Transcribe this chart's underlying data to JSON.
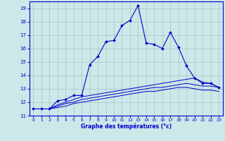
{
  "xlabel": "Graphe des températures (°c)",
  "background_color": "#cce8e8",
  "grid_color": "#aacccc",
  "line_color": "#0000cc",
  "x_values": [
    0,
    1,
    2,
    3,
    4,
    5,
    6,
    7,
    8,
    9,
    10,
    11,
    12,
    13,
    14,
    15,
    16,
    17,
    18,
    19,
    20,
    21,
    22,
    23
  ],
  "ylim": [
    11,
    19.5
  ],
  "xlim": [
    -0.5,
    23.5
  ],
  "yticks": [
    11,
    12,
    13,
    14,
    15,
    16,
    17,
    18,
    19
  ],
  "xticks": [
    0,
    1,
    2,
    3,
    4,
    5,
    6,
    7,
    8,
    9,
    10,
    11,
    12,
    13,
    14,
    15,
    16,
    17,
    18,
    19,
    20,
    21,
    22,
    23
  ],
  "curve1": [
    11.5,
    11.5,
    11.5,
    12.1,
    12.2,
    12.5,
    12.5,
    14.8,
    15.4,
    16.5,
    16.6,
    17.7,
    18.1,
    19.2,
    16.4,
    16.3,
    16.0,
    17.2,
    16.1,
    14.7,
    13.8,
    13.4,
    13.4,
    13.1
  ],
  "curve2": [
    11.5,
    11.5,
    11.5,
    11.8,
    12.0,
    12.2,
    12.4,
    12.5,
    12.6,
    12.7,
    12.8,
    12.9,
    13.0,
    13.1,
    13.2,
    13.3,
    13.4,
    13.5,
    13.6,
    13.7,
    13.8,
    13.5,
    13.4,
    13.1
  ],
  "curve3": [
    11.5,
    11.5,
    11.5,
    11.7,
    11.9,
    12.0,
    12.2,
    12.3,
    12.4,
    12.5,
    12.6,
    12.7,
    12.8,
    12.9,
    13.0,
    13.1,
    13.1,
    13.2,
    13.3,
    13.4,
    13.3,
    13.2,
    13.2,
    13.1
  ],
  "curve4": [
    11.5,
    11.5,
    11.5,
    11.6,
    11.7,
    11.9,
    12.0,
    12.1,
    12.2,
    12.3,
    12.4,
    12.5,
    12.6,
    12.7,
    12.8,
    12.8,
    12.9,
    13.0,
    13.1,
    13.1,
    13.0,
    12.9,
    12.9,
    12.8
  ]
}
